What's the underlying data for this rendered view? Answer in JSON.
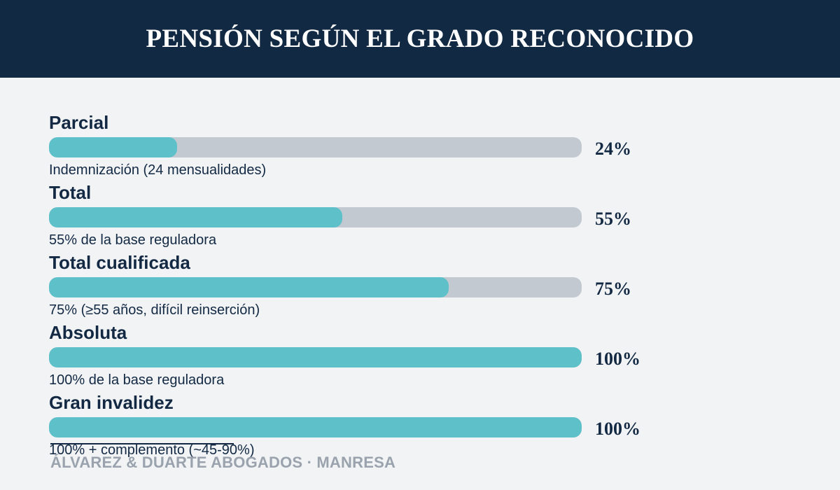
{
  "header": {
    "title": "PENSIÓN SEGÚN EL GRADO RECONOCIDO"
  },
  "chart_data": {
    "type": "bar",
    "orientation": "horizontal",
    "title": "PENSIÓN SEGÚN EL GRADO RECONOCIDO",
    "xlim": [
      0,
      100
    ],
    "unit": "%",
    "categories": [
      "Parcial",
      "Total",
      "Total cualificada",
      "Absoluta",
      "Gran invalidez"
    ],
    "values": [
      24,
      55,
      75,
      100,
      100
    ],
    "value_labels": [
      "24%",
      "55%",
      "75%",
      "100%",
      "100%"
    ],
    "notes": [
      "Indemnización (24 mensualidades)",
      "55% de la base reguladora",
      "75% (≥55 años, difícil reinserción)",
      "100% de la base reguladora",
      "100% + complemento (~45-90%)"
    ],
    "colors": {
      "fill": "#5ec0c9",
      "track": "#c3c9d0",
      "text": "#132943"
    }
  },
  "footer": {
    "text": "ÁLVAREZ & DUARTE ABOGADOS · MANRESA"
  }
}
